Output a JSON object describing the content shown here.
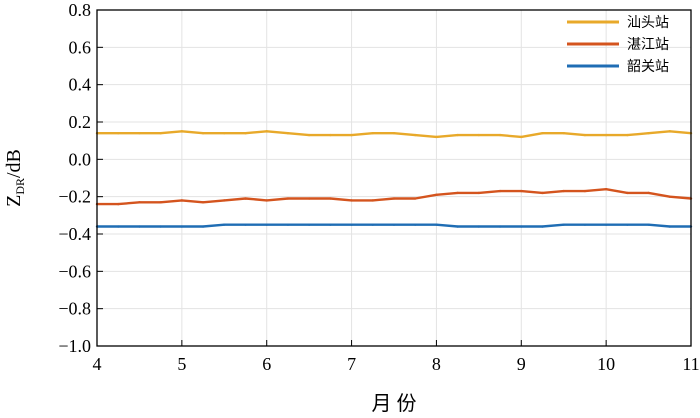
{
  "chart_data": {
    "type": "line",
    "title": "",
    "xlabel": "月  份",
    "ylabel": "Z",
    "ylabel_subscript": "DR",
    "ylabel_suffix": "/dB",
    "xlim": [
      4,
      11
    ],
    "ylim": [
      -1.0,
      0.8
    ],
    "x_ticks": [
      4,
      5,
      6,
      7,
      8,
      9,
      10,
      11
    ],
    "x_tick_labels": [
      "4",
      "5",
      "6",
      "7",
      "8",
      "9",
      "10",
      "11"
    ],
    "y_ticks": [
      -1.0,
      -0.8,
      -0.6,
      -0.4,
      -0.2,
      0.0,
      0.2,
      0.4,
      0.6,
      0.8
    ],
    "y_tick_labels": [
      "−1.0",
      "−0.8",
      "−0.6",
      "−0.4",
      "−0.2",
      "0.0",
      "0.2",
      "0.4",
      "0.6",
      "0.8"
    ],
    "grid": true,
    "legend_position": "top-right",
    "series": [
      {
        "name": "汕头站",
        "color": "#E8A92A",
        "x": [
          4.0,
          4.25,
          4.5,
          4.75,
          5.0,
          5.25,
          5.5,
          5.75,
          6.0,
          6.25,
          6.5,
          6.75,
          7.0,
          7.25,
          7.5,
          7.75,
          8.0,
          8.25,
          8.5,
          8.75,
          9.0,
          9.25,
          9.5,
          9.75,
          10.0,
          10.25,
          10.5,
          10.75,
          11.0
        ],
        "values": [
          0.14,
          0.14,
          0.14,
          0.14,
          0.15,
          0.14,
          0.14,
          0.14,
          0.15,
          0.14,
          0.13,
          0.13,
          0.13,
          0.14,
          0.14,
          0.13,
          0.12,
          0.13,
          0.13,
          0.13,
          0.12,
          0.14,
          0.14,
          0.13,
          0.13,
          0.13,
          0.14,
          0.15,
          0.14
        ]
      },
      {
        "name": "湛江站",
        "color": "#D4541E",
        "x": [
          4.0,
          4.25,
          4.5,
          4.75,
          5.0,
          5.25,
          5.5,
          5.75,
          6.0,
          6.25,
          6.5,
          6.75,
          7.0,
          7.25,
          7.5,
          7.75,
          8.0,
          8.25,
          8.5,
          8.75,
          9.0,
          9.25,
          9.5,
          9.75,
          10.0,
          10.25,
          10.5,
          10.75,
          11.0
        ],
        "values": [
          -0.24,
          -0.24,
          -0.23,
          -0.23,
          -0.22,
          -0.23,
          -0.22,
          -0.21,
          -0.22,
          -0.21,
          -0.21,
          -0.21,
          -0.22,
          -0.22,
          -0.21,
          -0.21,
          -0.19,
          -0.18,
          -0.18,
          -0.17,
          -0.17,
          -0.18,
          -0.17,
          -0.17,
          -0.16,
          -0.18,
          -0.18,
          -0.2,
          -0.21
        ]
      },
      {
        "name": "韶关站",
        "color": "#1F6DB4",
        "x": [
          4.0,
          4.25,
          4.5,
          4.75,
          5.0,
          5.25,
          5.5,
          5.75,
          6.0,
          6.25,
          6.5,
          6.75,
          7.0,
          7.25,
          7.5,
          7.75,
          8.0,
          8.25,
          8.5,
          8.75,
          9.0,
          9.25,
          9.5,
          9.75,
          10.0,
          10.25,
          10.5,
          10.75,
          11.0
        ],
        "values": [
          -0.36,
          -0.36,
          -0.36,
          -0.36,
          -0.36,
          -0.36,
          -0.35,
          -0.35,
          -0.35,
          -0.35,
          -0.35,
          -0.35,
          -0.35,
          -0.35,
          -0.35,
          -0.35,
          -0.35,
          -0.36,
          -0.36,
          -0.36,
          -0.36,
          -0.36,
          -0.35,
          -0.35,
          -0.35,
          -0.35,
          -0.35,
          -0.36,
          -0.36
        ]
      }
    ]
  }
}
